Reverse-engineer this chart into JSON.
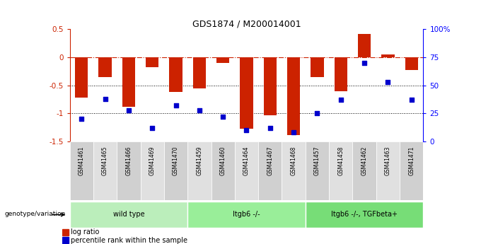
{
  "title": "GDS1874 / M200014001",
  "samples": [
    "GSM41461",
    "GSM41465",
    "GSM41466",
    "GSM41469",
    "GSM41470",
    "GSM41459",
    "GSM41460",
    "GSM41464",
    "GSM41467",
    "GSM41468",
    "GSM41457",
    "GSM41458",
    "GSM41462",
    "GSM41463",
    "GSM41471"
  ],
  "log_ratio": [
    -0.72,
    -0.35,
    -0.88,
    -0.18,
    -0.62,
    -0.55,
    -0.1,
    -1.27,
    -1.03,
    -1.38,
    -0.35,
    -0.6,
    0.42,
    0.05,
    -0.22
  ],
  "percentile": [
    20,
    38,
    28,
    12,
    32,
    28,
    22,
    10,
    12,
    8,
    25,
    37,
    70,
    53,
    37
  ],
  "groups": [
    {
      "label": "wild type",
      "start": 0,
      "end": 5,
      "color": "#bbeebb"
    },
    {
      "label": "Itgb6 -/-",
      "start": 5,
      "end": 10,
      "color": "#99ee99"
    },
    {
      "label": "Itgb6 -/-, TGFbeta+",
      "start": 10,
      "end": 15,
      "color": "#77dd77"
    }
  ],
  "bar_color": "#cc2200",
  "dot_color": "#0000cc",
  "ylim_left": [
    -1.5,
    0.5
  ],
  "ylim_right": [
    0,
    100
  ],
  "hlines": [
    -0.5,
    -1.0
  ],
  "bg_color": "#ffffff",
  "plot_bg": "#ffffff",
  "legend_bar_label": "log ratio",
  "legend_dot_label": "percentile rank within the sample",
  "genotype_label": "genotype/variation",
  "tick_box_colors": [
    "#d0d0d0",
    "#e0e0e0"
  ]
}
